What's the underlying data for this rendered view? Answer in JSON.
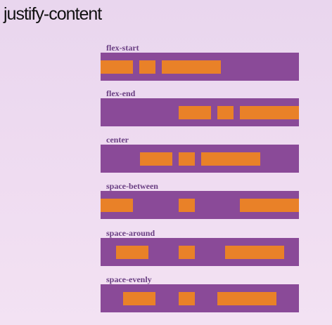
{
  "title": "justify-content",
  "panels": [
    {
      "label": "flex-start"
    },
    {
      "label": "flex-end"
    },
    {
      "label": "center"
    },
    {
      "label": "space-between"
    },
    {
      "label": "space-around"
    },
    {
      "label": "space-evenly"
    }
  ],
  "colors": {
    "background": "#ecd9f0",
    "container": "#8a4a98",
    "item": "#e98128",
    "label": "#6a3f83"
  }
}
